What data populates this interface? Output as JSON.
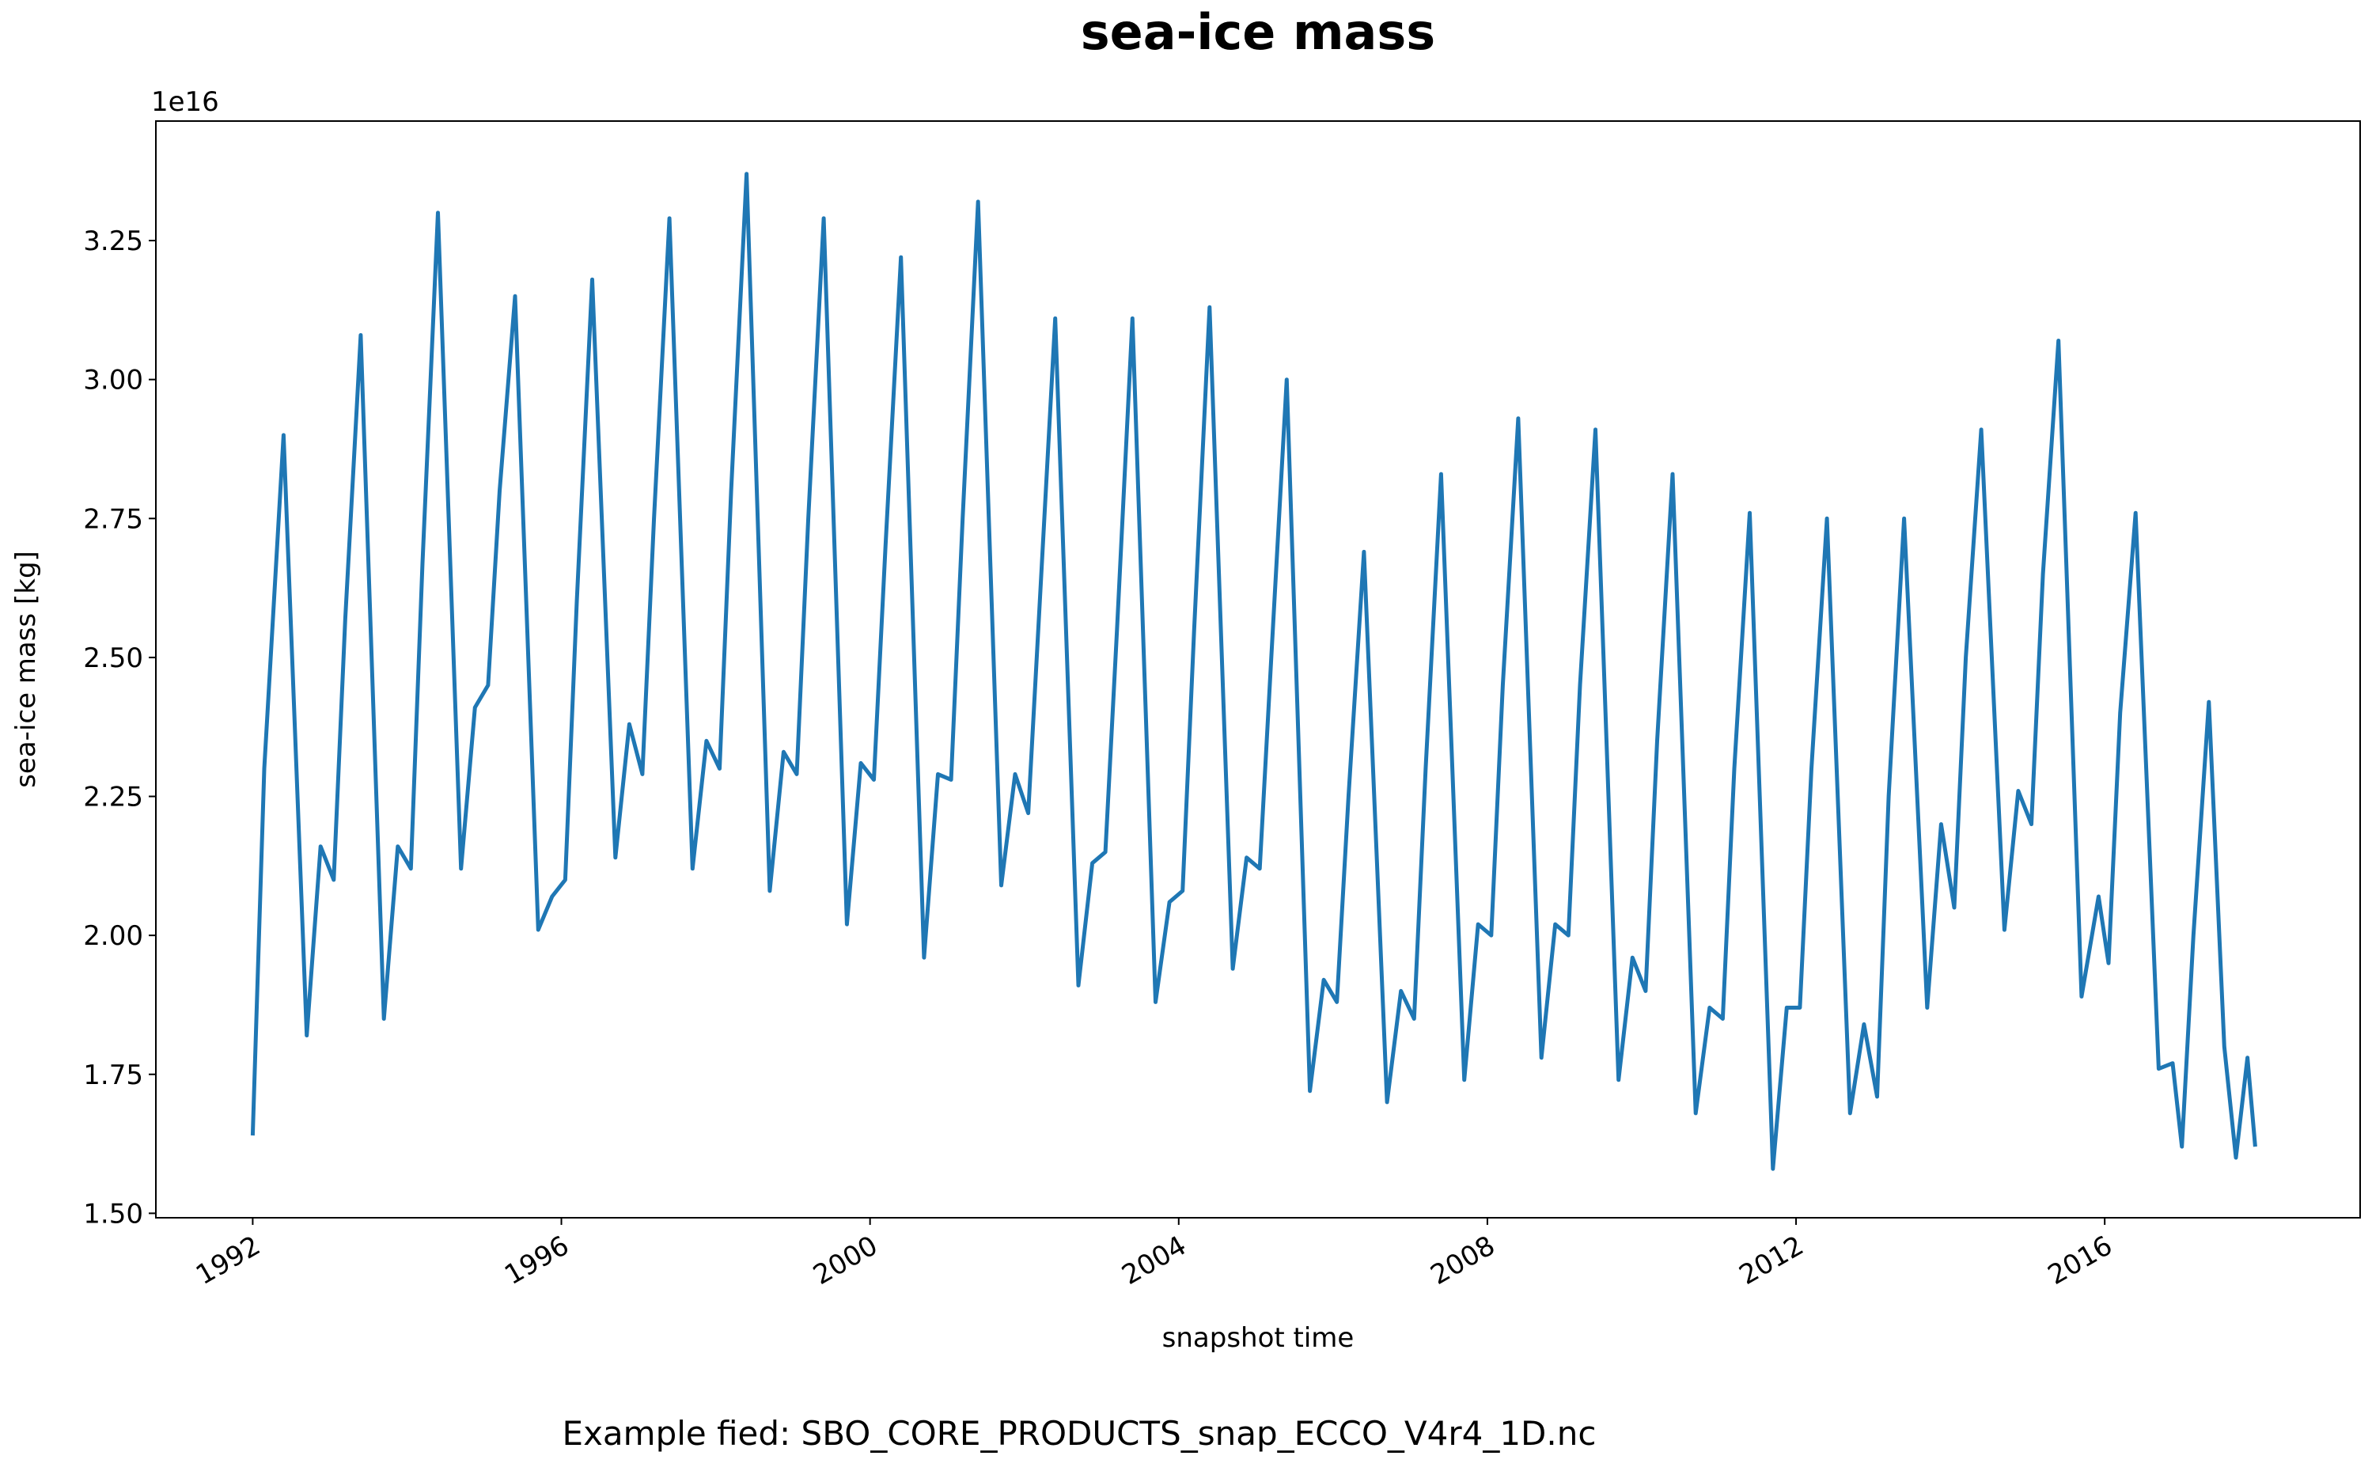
{
  "chart_data": {
    "type": "line",
    "title": "sea-ice mass",
    "xlabel": "snapshot time",
    "ylabel": "sea-ice mass [kg]",
    "y_offset_label": "1e16",
    "caption": "Example fied: SBO_CORE_PRODUCTS_snap_ECCO_V4r4_1D.nc",
    "color": "#1f77b4",
    "grid": false,
    "xlim": [
      1990.745,
      2019.31
    ],
    "xticks": [
      1992,
      1996,
      2000,
      2004,
      2008,
      2012,
      2016
    ],
    "ylim": [
      1.492,
      3.465
    ],
    "yticks": [
      {
        "value": 1.5,
        "label": "1.50"
      },
      1.75,
      {
        "value": 2,
        "label": "2.00"
      },
      2.25,
      {
        "value": 2.5,
        "label": "2.50"
      },
      2.75,
      {
        "value": 3,
        "label": "3.00"
      },
      3.25
    ],
    "x": [
      1992.0,
      1992.15,
      1992.4,
      1992.7,
      1992.88,
      1993.05,
      1993.2,
      1993.4,
      1993.7,
      1993.88,
      1994.05,
      1994.2,
      1994.4,
      1994.7,
      1994.88,
      1995.05,
      1995.2,
      1995.4,
      1995.7,
      1995.88,
      1996.05,
      1996.2,
      1996.4,
      1996.7,
      1996.88,
      1997.05,
      1997.2,
      1997.4,
      1997.7,
      1997.88,
      1998.05,
      1998.2,
      1998.4,
      1998.7,
      1998.88,
      1999.05,
      1999.2,
      1999.4,
      1999.7,
      1999.88,
      2000.05,
      2000.2,
      2000.4,
      2000.7,
      2000.88,
      2001.05,
      2001.2,
      2001.4,
      2001.7,
      2001.88,
      2002.05,
      2002.2,
      2002.4,
      2002.7,
      2002.88,
      2003.05,
      2003.2,
      2003.4,
      2003.7,
      2003.88,
      2004.05,
      2004.2,
      2004.4,
      2004.7,
      2004.88,
      2005.05,
      2005.2,
      2005.4,
      2005.7,
      2005.88,
      2006.05,
      2006.2,
      2006.4,
      2006.7,
      2006.88,
      2007.05,
      2007.2,
      2007.4,
      2007.7,
      2007.88,
      2008.05,
      2008.2,
      2008.4,
      2008.7,
      2008.88,
      2009.05,
      2009.2,
      2009.4,
      2009.7,
      2009.88,
      2010.05,
      2010.2,
      2010.4,
      2010.7,
      2010.88,
      2011.05,
      2011.2,
      2011.4,
      2011.7,
      2011.88,
      2012.05,
      2012.2,
      2012.4,
      2012.7,
      2012.88,
      2013.05,
      2013.2,
      2013.4,
      2013.7,
      2013.88,
      2014.05,
      2014.2,
      2014.4,
      2014.7,
      2014.88,
      2015.05,
      2015.2,
      2015.4,
      2015.7,
      2015.92,
      2016.05,
      2016.2,
      2016.4,
      2016.7,
      2016.88,
      2017.0,
      2017.15,
      2017.35,
      2017.55,
      2017.7,
      2017.85,
      2017.95
    ],
    "values": [
      1.64,
      2.3,
      2.9,
      1.82,
      2.16,
      2.1,
      2.57,
      3.08,
      1.85,
      2.16,
      2.12,
      2.67,
      3.3,
      2.12,
      2.41,
      2.45,
      2.8,
      3.15,
      2.01,
      2.07,
      2.1,
      2.6,
      3.18,
      2.14,
      2.38,
      2.29,
      2.75,
      3.29,
      2.12,
      2.35,
      2.3,
      2.8,
      3.37,
      2.08,
      2.33,
      2.29,
      2.75,
      3.29,
      2.02,
      2.31,
      2.28,
      2.7,
      3.22,
      1.96,
      2.29,
      2.28,
      2.75,
      3.32,
      2.09,
      2.29,
      2.22,
      2.6,
      3.11,
      1.91,
      2.13,
      2.15,
      2.55,
      3.11,
      1.88,
      2.06,
      2.08,
      2.55,
      3.13,
      1.94,
      2.14,
      2.12,
      2.5,
      3.0,
      1.72,
      1.92,
      1.88,
      2.25,
      2.69,
      1.7,
      1.9,
      1.85,
      2.3,
      2.83,
      1.74,
      2.02,
      2.0,
      2.45,
      2.93,
      1.78,
      2.02,
      2.0,
      2.45,
      2.91,
      1.74,
      1.96,
      1.9,
      2.35,
      2.83,
      1.68,
      1.87,
      1.85,
      2.3,
      2.76,
      1.58,
      1.87,
      1.87,
      2.3,
      2.75,
      1.68,
      1.84,
      1.71,
      2.25,
      2.75,
      1.87,
      2.2,
      2.05,
      2.5,
      2.91,
      2.01,
      2.26,
      2.2,
      2.65,
      3.07,
      1.89,
      2.07,
      1.95,
      2.4,
      2.76,
      1.76,
      1.77,
      1.62,
      2.0,
      2.42,
      1.8,
      1.6,
      1.78,
      1.62
    ]
  }
}
